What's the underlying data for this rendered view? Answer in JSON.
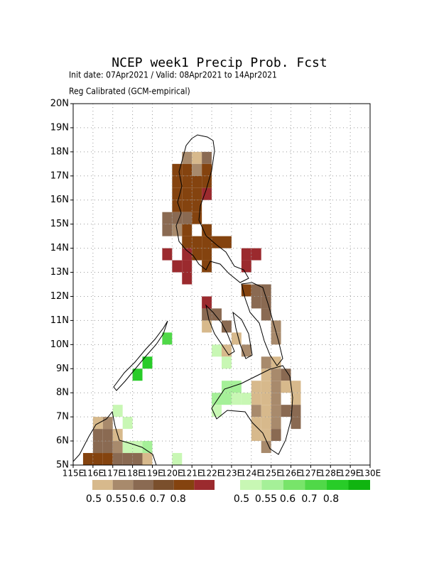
{
  "map": {
    "title": "NCEP week1 Precip Prob. Fcst",
    "subtitle": [
      "Init date: 07Apr2021 / Valid: 08Apr2021 to 14Apr2021",
      "Reg Calibrated (GCM-empirical)"
    ],
    "xlim": [
      115,
      130
    ],
    "ylim": [
      5,
      20
    ],
    "xticks": [
      {
        "value": 115,
        "label": "115E"
      },
      {
        "value": 116,
        "label": "116E"
      },
      {
        "value": 117,
        "label": "117E"
      },
      {
        "value": 118,
        "label": "118E"
      },
      {
        "value": 119,
        "label": "119E"
      },
      {
        "value": 120,
        "label": "120E"
      },
      {
        "value": 121,
        "label": "121E"
      },
      {
        "value": 122,
        "label": "122E"
      },
      {
        "value": 123,
        "label": "123E"
      },
      {
        "value": 124,
        "label": "124E"
      },
      {
        "value": 125,
        "label": "125E"
      },
      {
        "value": 126,
        "label": "126E"
      },
      {
        "value": 127,
        "label": "127E"
      },
      {
        "value": 128,
        "label": "128E"
      },
      {
        "value": 129,
        "label": "129E"
      },
      {
        "value": 130,
        "label": "130E"
      }
    ],
    "yticks": [
      {
        "value": 5,
        "label": "5N"
      },
      {
        "value": 6,
        "label": "6N"
      },
      {
        "value": 7,
        "label": "7N"
      },
      {
        "value": 8,
        "label": "8N"
      },
      {
        "value": 9,
        "label": "9N"
      },
      {
        "value": 10,
        "label": "10N"
      },
      {
        "value": 11,
        "label": "11N"
      },
      {
        "value": 12,
        "label": "12N"
      },
      {
        "value": 13,
        "label": "13N"
      },
      {
        "value": 14,
        "label": "14N"
      },
      {
        "value": 15,
        "label": "15N"
      },
      {
        "value": 16,
        "label": "16N"
      },
      {
        "value": 17,
        "label": "17N"
      },
      {
        "value": 18,
        "label": "18N"
      },
      {
        "value": 19,
        "label": "19N"
      },
      {
        "value": 20,
        "label": "20N"
      }
    ],
    "cell_size": 0.5,
    "class_colors": [
      "#d7b98c",
      "#a88a6c",
      "#8a6a52",
      "#7a4f2c",
      "#84430f",
      "#9b2a2e",
      "#c8f7b4",
      "#a5f098",
      "#78e46a",
      "#50d848",
      "#28cc28",
      "#10b410"
    ],
    "cells": [
      [
        120.5,
        17.5,
        1
      ],
      [
        121,
        17.5,
        0
      ],
      [
        121.5,
        17.5,
        2
      ],
      [
        120,
        17,
        4
      ],
      [
        120.5,
        17,
        4
      ],
      [
        121,
        17,
        1
      ],
      [
        121.5,
        17,
        4
      ],
      [
        120,
        16.5,
        4
      ],
      [
        120.5,
        16.5,
        4
      ],
      [
        121,
        16.5,
        4
      ],
      [
        121.5,
        16.5,
        4
      ],
      [
        120,
        16,
        4
      ],
      [
        120.5,
        16,
        4
      ],
      [
        121,
        16,
        4
      ],
      [
        121.5,
        16,
        5
      ],
      [
        120,
        15.5,
        4
      ],
      [
        120.5,
        15.5,
        4
      ],
      [
        121,
        15.5,
        4
      ],
      [
        119.5,
        15,
        2
      ],
      [
        120,
        15,
        2
      ],
      [
        120.5,
        15,
        2
      ],
      [
        121,
        15,
        4
      ],
      [
        119.5,
        14.5,
        2
      ],
      [
        120,
        14.5,
        1
      ],
      [
        120.5,
        14.5,
        4
      ],
      [
        121.5,
        14.5,
        4
      ],
      [
        120.5,
        14,
        4
      ],
      [
        121,
        14,
        4
      ],
      [
        121.5,
        14,
        4
      ],
      [
        122,
        14,
        4
      ],
      [
        122.5,
        14,
        4
      ],
      [
        119.5,
        13.5,
        5
      ],
      [
        120.5,
        13.5,
        5
      ],
      [
        121,
        13.5,
        4
      ],
      [
        121.5,
        13.5,
        4
      ],
      [
        120,
        13,
        5
      ],
      [
        120.5,
        13,
        5
      ],
      [
        121.5,
        13,
        4
      ],
      [
        120.5,
        12.5,
        5
      ],
      [
        123.5,
        13.5,
        5
      ],
      [
        124,
        13.5,
        5
      ],
      [
        123.5,
        13,
        5
      ],
      [
        123.5,
        12,
        4
      ],
      [
        124,
        12,
        2
      ],
      [
        124.5,
        12,
        2
      ],
      [
        124,
        11.5,
        2
      ],
      [
        124.5,
        11.5,
        2
      ],
      [
        121.5,
        11.5,
        5
      ],
      [
        121.5,
        11,
        2
      ],
      [
        122,
        11,
        2
      ],
      [
        124.5,
        11,
        2
      ],
      [
        121.5,
        10.5,
        0
      ],
      [
        122.5,
        10.5,
        2
      ],
      [
        125,
        10.5,
        1
      ],
      [
        123,
        10,
        0
      ],
      [
        125,
        10,
        1
      ],
      [
        123.5,
        9.5,
        1
      ],
      [
        122.5,
        9.5,
        0
      ],
      [
        124.5,
        9,
        1
      ],
      [
        125,
        9,
        0
      ],
      [
        124.5,
        8.5,
        0
      ],
      [
        125,
        8.5,
        1
      ],
      [
        125.5,
        8.5,
        2
      ],
      [
        124,
        8,
        0
      ],
      [
        124.5,
        8,
        0
      ],
      [
        125,
        8,
        1
      ],
      [
        125.5,
        8,
        0
      ],
      [
        126,
        8,
        0
      ],
      [
        124,
        7.5,
        0
      ],
      [
        124.5,
        7.5,
        0
      ],
      [
        125,
        7.5,
        1
      ],
      [
        126,
        7.5,
        0
      ],
      [
        124,
        7,
        1
      ],
      [
        124.5,
        7,
        0
      ],
      [
        125,
        7,
        1
      ],
      [
        125.5,
        7,
        2
      ],
      [
        126,
        7,
        2
      ],
      [
        124,
        6.5,
        0
      ],
      [
        124.5,
        6.5,
        0
      ],
      [
        125,
        6.5,
        1
      ],
      [
        126,
        6.5,
        2
      ],
      [
        124,
        6,
        0
      ],
      [
        124.5,
        6,
        0
      ],
      [
        125,
        6,
        2
      ],
      [
        124.5,
        5.5,
        1
      ],
      [
        115.5,
        5,
        4
      ],
      [
        116,
        5,
        4
      ],
      [
        116.5,
        5,
        4
      ],
      [
        117,
        5,
        2
      ],
      [
        117.5,
        5,
        2
      ],
      [
        118,
        5,
        2
      ],
      [
        118.5,
        5,
        0
      ],
      [
        116,
        5.5,
        2
      ],
      [
        116.5,
        5.5,
        2
      ],
      [
        117,
        5.5,
        1
      ],
      [
        116,
        6,
        2
      ],
      [
        116.5,
        6,
        2
      ],
      [
        117,
        6,
        0
      ],
      [
        116,
        6.5,
        0
      ],
      [
        116.5,
        6.5,
        1
      ],
      [
        122,
        9.5,
        6
      ],
      [
        122.5,
        9,
        6
      ],
      [
        122,
        7.5,
        7
      ],
      [
        122,
        7,
        6
      ],
      [
        122.5,
        8,
        7
      ],
      [
        123,
        8,
        7
      ],
      [
        122.5,
        7.5,
        7
      ],
      [
        123,
        7.5,
        6
      ],
      [
        123.5,
        7.5,
        6
      ],
      [
        119.5,
        10,
        9
      ],
      [
        118.5,
        9,
        10
      ],
      [
        118,
        8.5,
        10
      ],
      [
        117.5,
        6.5,
        6
      ],
      [
        117.5,
        5.5,
        6
      ],
      [
        118,
        5.5,
        6
      ],
      [
        118.5,
        5.5,
        7
      ],
      [
        117,
        7,
        6
      ],
      [
        120,
        5,
        6
      ]
    ],
    "legend": {
      "brown": {
        "colors": [
          "#d7b98c",
          "#a88a6c",
          "#8a6a52",
          "#7a4f2c",
          "#84430f",
          "#9b2a2e"
        ],
        "labels": [
          0.5,
          0.55,
          0.6,
          0.7,
          0.8
        ]
      },
      "green": {
        "colors": [
          "#c8f7b4",
          "#a5f098",
          "#78e46a",
          "#50d848",
          "#28cc28",
          "#10b410"
        ],
        "labels": [
          0.5,
          0.55,
          0.6,
          0.7,
          0.8
        ]
      }
    }
  }
}
